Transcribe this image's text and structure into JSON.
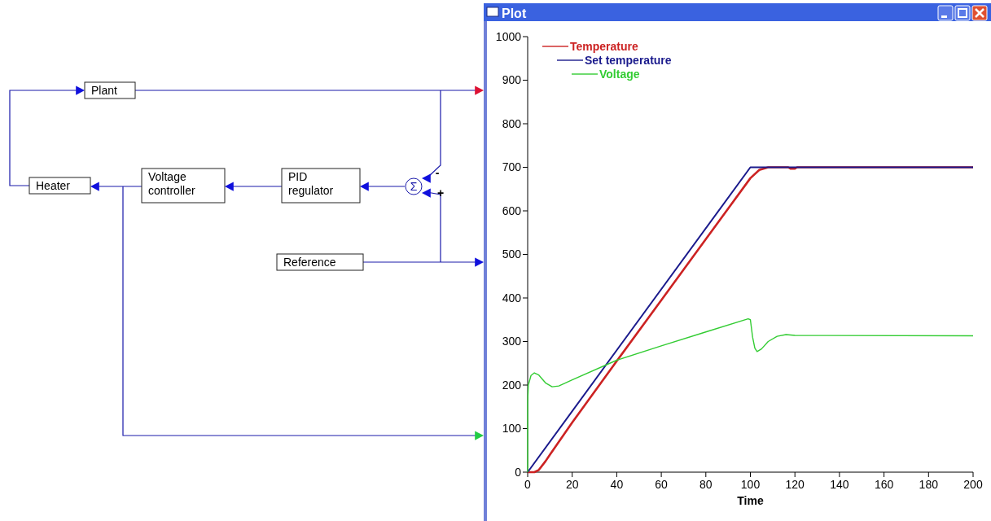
{
  "chart_data": {
    "type": "line",
    "title": "Plot",
    "xlabel": "Time",
    "xlim": [
      0,
      200
    ],
    "ylim": [
      0,
      1000
    ],
    "xticks": [
      0,
      20,
      40,
      60,
      80,
      100,
      120,
      140,
      160,
      180,
      200
    ],
    "yticks": [
      0,
      100,
      200,
      300,
      400,
      500,
      600,
      700,
      800,
      900,
      1000
    ],
    "legend": "top left",
    "grid": false,
    "marker": "none",
    "line_style": "solid",
    "annotations": [
      "Plant",
      "Heater",
      "Voltage\ncontroller",
      "PID\nregulator",
      "Reference",
      "Σ",
      "-",
      "+"
    ],
    "series": [
      {
        "name": "Temperature",
        "color": "#cc2222",
        "x": [
          0,
          3,
          5,
          8,
          10,
          20,
          40,
          60,
          80,
          100,
          104,
          108,
          117,
          118,
          120,
          121,
          200
        ],
        "values": [
          0,
          0,
          5,
          25,
          40,
          114,
          255,
          395,
          535,
          675,
          694,
          700,
          700,
          697,
          697,
          700,
          700
        ]
      },
      {
        "name": "Set temperature",
        "color": "#1a1a8c",
        "x": [
          0,
          100,
          200
        ],
        "values": [
          0,
          700,
          700
        ]
      },
      {
        "name": "Voltage",
        "color": "#33cc33",
        "x": [
          0,
          0,
          0.3,
          1.5,
          3,
          5,
          8,
          11,
          14,
          20,
          40,
          60,
          80,
          99,
          100,
          101,
          102,
          103,
          105,
          108,
          112,
          116,
          120,
          200
        ],
        "values": [
          0,
          160,
          200,
          222,
          228,
          223,
          205,
          196,
          198,
          212,
          257,
          290,
          322,
          352,
          350,
          310,
          285,
          277,
          283,
          300,
          312,
          316,
          314,
          313
        ]
      }
    ]
  }
}
